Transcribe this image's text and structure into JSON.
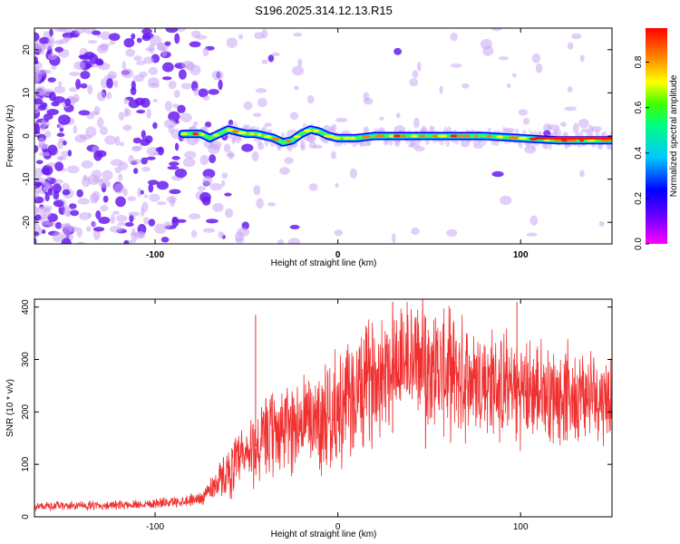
{
  "title": "S196.2025.314.12.13.R15",
  "colors": {
    "snr_line": "#f03030",
    "colormap": [
      "#ff00ff",
      "#7000ff",
      "#0000ff",
      "#00c8ff",
      "#00ff80",
      "#40ff00",
      "#ffff00",
      "#ff8000",
      "#ff0000"
    ]
  },
  "chart_data": [
    {
      "type": "heatmap",
      "name": "spectrogram",
      "xlabel": "Height of straight line (km)",
      "ylabel": "Frequency (Hz)",
      "xlim": [
        -166,
        150
      ],
      "ylim": [
        -25,
        25
      ],
      "xticks": [
        -100,
        0,
        100
      ],
      "xtick_labels": [
        "-100",
        "0",
        "100"
      ],
      "yticks": [
        -20,
        -10,
        0,
        10,
        20
      ],
      "ytick_labels": [
        "-20",
        "-10",
        "0",
        "10",
        "20"
      ],
      "ridge": {
        "x": [
          -85,
          -75,
          -70,
          -65,
          -60,
          -55,
          -50,
          -45,
          -40,
          -35,
          -30,
          -25,
          -20,
          -15,
          -10,
          -5,
          0,
          10,
          20,
          40,
          60,
          80,
          100,
          120,
          150
        ],
        "y": [
          0.5,
          0.5,
          -0.5,
          0.5,
          1.5,
          1.0,
          0.5,
          0.5,
          0.0,
          -0.5,
          -1.5,
          -1.0,
          0.5,
          1.5,
          1.0,
          0.0,
          -0.5,
          -0.5,
          0.0,
          0.0,
          0.0,
          0.0,
          -0.5,
          -1.0,
          -1.0
        ]
      },
      "colorbar": {
        "label": "Normalized spectral amplitude",
        "range": [
          0,
          0.95
        ],
        "ticks": [
          0.0,
          0.2,
          0.4,
          0.6,
          0.8
        ],
        "tick_labels": [
          "0.0",
          "0.2",
          "0.4",
          "0.6",
          "0.8"
        ]
      }
    },
    {
      "type": "line",
      "name": "snr",
      "xlabel": "Height of straight line (km)",
      "ylabel": "SNR (10 * v/v)",
      "xlim": [
        -166,
        150
      ],
      "ylim": [
        0,
        415
      ],
      "xticks": [
        -100,
        0,
        100
      ],
      "xtick_labels": [
        "-100",
        "0",
        "100"
      ],
      "yticks": [
        0,
        100,
        200,
        300,
        400
      ],
      "ytick_labels": [
        "0",
        "100",
        "200",
        "300",
        "400"
      ],
      "envelope": {
        "x": [
          -166,
          -120,
          -90,
          -75,
          -65,
          -55,
          -45,
          -35,
          -20,
          -10,
          0,
          10,
          20,
          30,
          40,
          50,
          60,
          80,
          100,
          120,
          150
        ],
        "mean": [
          20,
          22,
          28,
          35,
          70,
          100,
          130,
          160,
          180,
          190,
          200,
          230,
          270,
          300,
          300,
          290,
          275,
          255,
          240,
          235,
          230
        ],
        "spread": [
          10,
          10,
          12,
          15,
          40,
          70,
          90,
          100,
          110,
          120,
          130,
          140,
          140,
          140,
          140,
          140,
          140,
          130,
          120,
          110,
          100
        ]
      },
      "spikes": [
        {
          "x": -45,
          "y": 385
        },
        {
          "x": 30,
          "y": 410
        },
        {
          "x": 98,
          "y": 410
        },
        {
          "x": 48,
          "y": 380
        }
      ]
    }
  ]
}
